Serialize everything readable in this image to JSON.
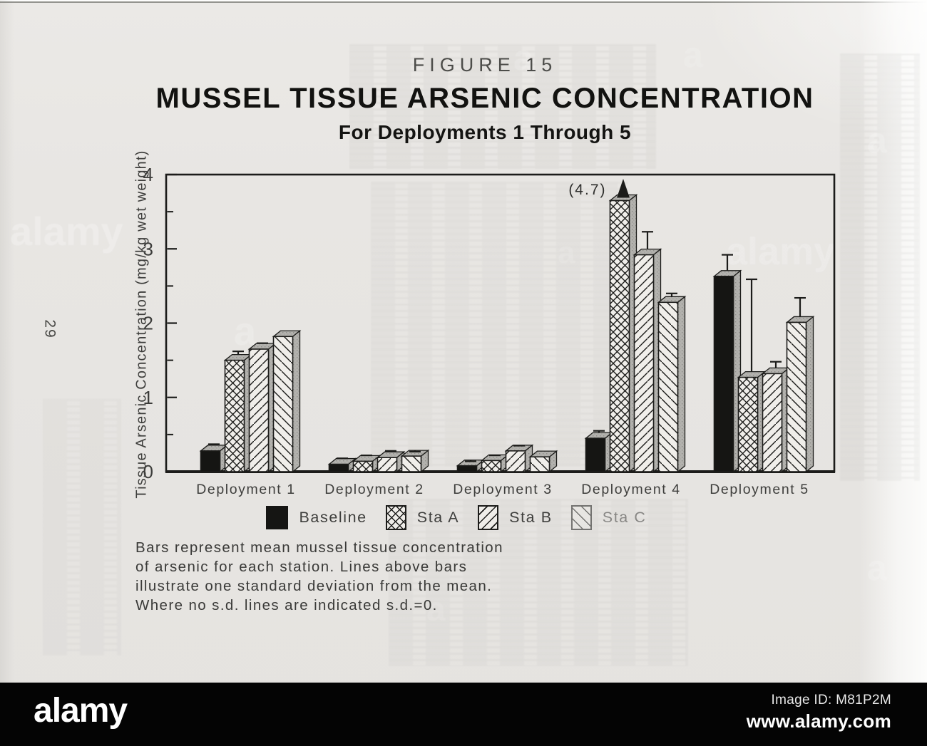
{
  "page": {
    "number_label": "29"
  },
  "header": {
    "figure_label": "FIGURE 15",
    "title": "MUSSEL TISSUE ARSENIC CONCENTRATION",
    "subtitle": "For Deployments 1 Through 5"
  },
  "chart_data": {
    "type": "bar",
    "style": "grouped-pseudo-3d",
    "figure_label": "FIGURE 15",
    "title": "MUSSEL TISSUE ARSENIC CONCENTRATION",
    "subtitle": "For Deployments 1 Through 5",
    "xlabel": "",
    "ylabel": "Tissue Arsenic Concentration (mg/kg wet weight)",
    "ylim": [
      0,
      4
    ],
    "y_major_ticks": [
      0,
      1,
      2,
      3,
      4
    ],
    "y_minor_step": 0.5,
    "grid": false,
    "legend_position": "below",
    "categories": [
      "Deployment 1",
      "Deployment 2",
      "Deployment 3",
      "Deployment 4",
      "Deployment 5"
    ],
    "series": [
      {
        "name": "Baseline",
        "pattern": "solid-black",
        "values": [
          0.28,
          0.1,
          0.08,
          0.45,
          2.63
        ],
        "sd": [
          0.09,
          0.08,
          0.06,
          0.1,
          0.29
        ]
      },
      {
        "name": "Sta A",
        "pattern": "crosshatch",
        "values": [
          1.5,
          0.14,
          0.15,
          4.7,
          1.27
        ],
        "sd": [
          0.12,
          0.08,
          0.07,
          0,
          1.32
        ]
      },
      {
        "name": "Sta B",
        "pattern": "diagonal-up",
        "values": [
          1.65,
          0.19,
          0.28,
          2.92,
          1.32
        ],
        "sd": [
          0.08,
          0.09,
          0.07,
          0.31,
          0.16
        ]
      },
      {
        "name": "Sta C",
        "pattern": "diagonal-down",
        "values": [
          1.82,
          0.21,
          0.2,
          2.28,
          2.01
        ],
        "sd": [
          0,
          0.06,
          0,
          0.12,
          0.33
        ]
      }
    ],
    "offscale": {
      "series_index": 1,
      "category_index": 3,
      "display_value": 3.65,
      "arrow": true
    },
    "annotations": [
      {
        "text": "(4.7)",
        "series": "Sta A",
        "category": "Deployment 4",
        "note": "off-scale bar truncated at top of axis with solid arrowhead"
      }
    ]
  },
  "legend": {
    "items": [
      {
        "label": "Baseline"
      },
      {
        "label": "Sta A"
      },
      {
        "label": "Sta B"
      },
      {
        "label": "Sta C"
      }
    ]
  },
  "caption": {
    "text": "Bars represent mean mussel tissue concentration\nof arsenic for each station. Lines above bars\nillustrate one standard deviation from the mean.\nWhere no s.d. lines are indicated s.d.=0."
  },
  "watermark": {
    "brand": "alamy",
    "letter": "a"
  },
  "footer": {
    "brand": "alamy",
    "image_id_label": "Image ID: M81P2M",
    "url": "www.alamy.com"
  },
  "colors": {
    "ink": "#1c1c1a",
    "paper": "#e8e6e3",
    "bar_face": "#f0eeea",
    "bar_side": "#b3b2ae",
    "footer_bg": "#000000",
    "footer_text": "#ffffff"
  }
}
